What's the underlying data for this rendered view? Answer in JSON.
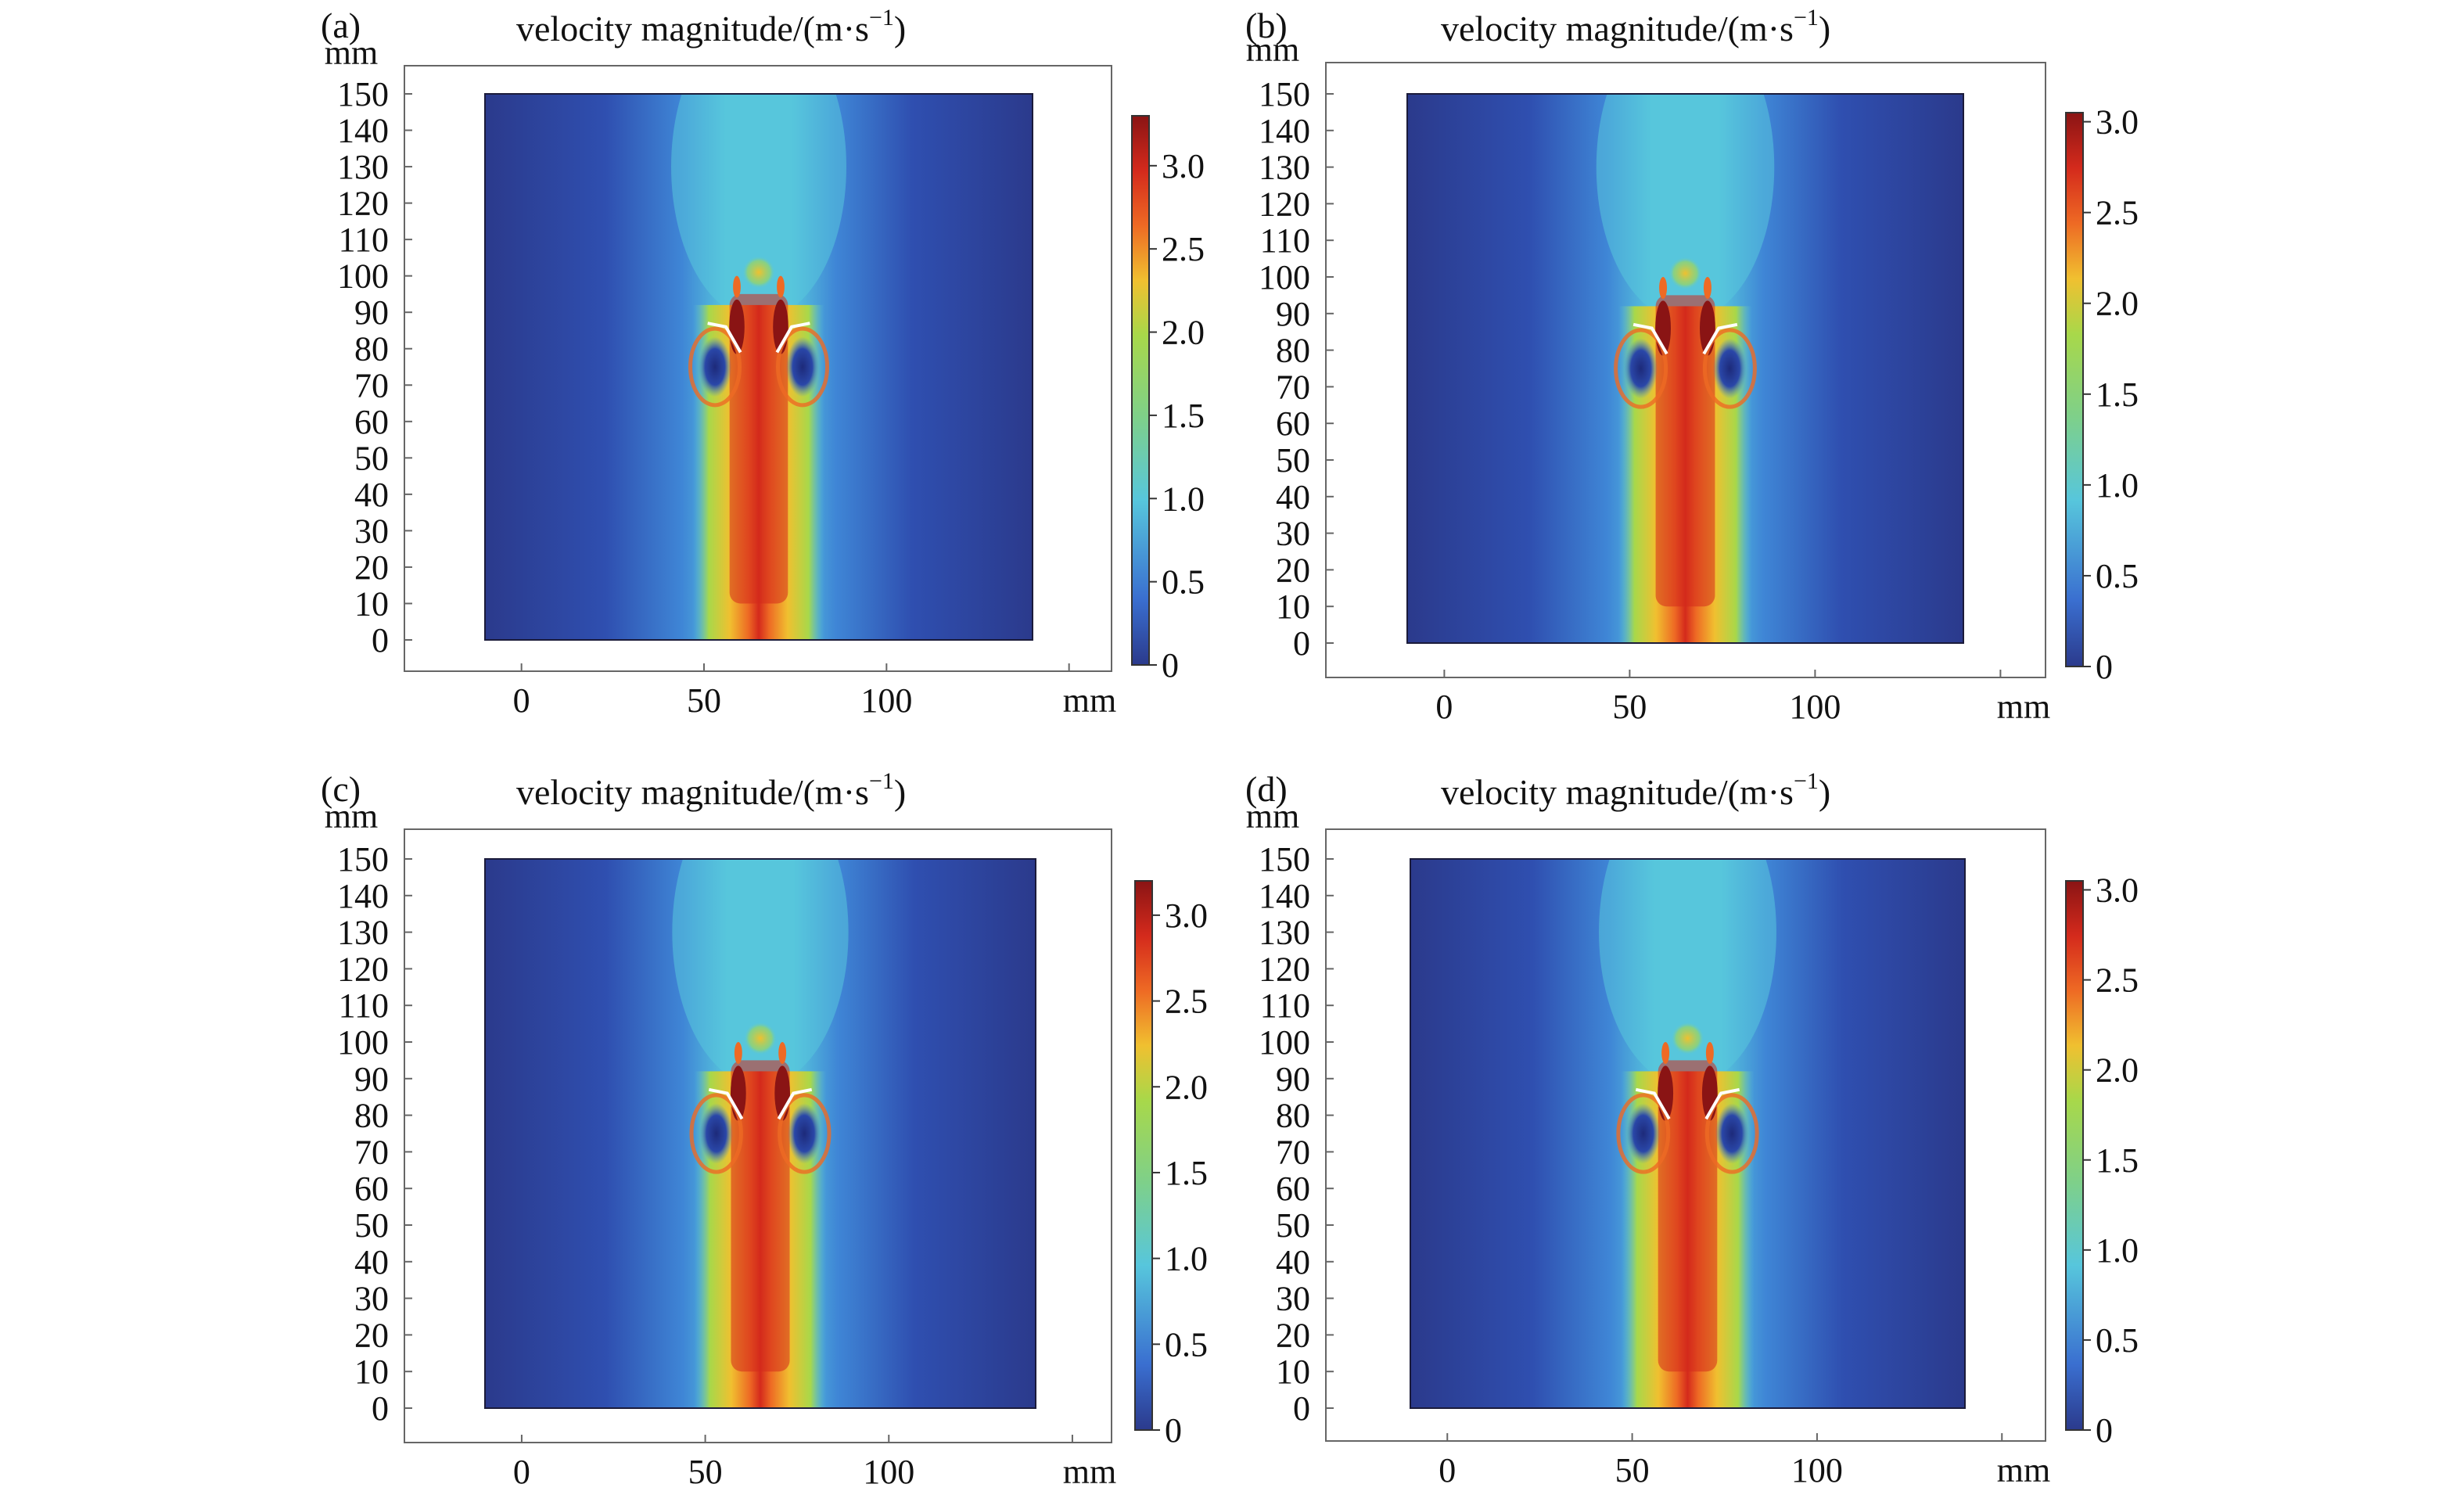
{
  "figure": {
    "panels": [
      {
        "label": "(a)",
        "title_main": "velocity magnitude/(m·s",
        "title_sup": "−1",
        "title_close": ")",
        "cbar_ticks": [
          "3.0",
          "2.5",
          "2.0",
          "1.5",
          "1.0",
          "0.5",
          "0"
        ],
        "cbar_max": 3.3
      },
      {
        "label": "(b)",
        "title_main": "velocity magnitude/(m·s",
        "title_sup": "−1",
        "title_close": ")",
        "cbar_ticks": [
          "3.0",
          "2.5",
          "2.0",
          "1.5",
          "1.0",
          "0.5",
          "0"
        ],
        "cbar_max": 3.05
      },
      {
        "label": "(c)",
        "title_main": "velocity magnitude/(m·s",
        "title_sup": "−1",
        "title_close": ")",
        "cbar_ticks": [
          "3.0",
          "2.5",
          "2.0",
          "1.5",
          "1.0",
          "0.5",
          "0"
        ],
        "cbar_max": 3.2
      },
      {
        "label": "(d)",
        "title_main": "velocity magnitude/(m·s",
        "title_sup": "−1",
        "title_close": ")",
        "cbar_ticks": [
          "3.0",
          "2.5",
          "2.0",
          "1.5",
          "1.0",
          "0.5",
          "0"
        ],
        "cbar_max": 3.05
      }
    ],
    "x_unit": "mm",
    "y_unit": "mm",
    "x_ticks": [
      "0",
      "50",
      "100"
    ],
    "y_ticks": [
      "150",
      "140",
      "130",
      "120",
      "110",
      "100",
      "90",
      "80",
      "70",
      "60",
      "50",
      "40",
      "30",
      "20",
      "10",
      "0"
    ],
    "colors": {
      "low": "#2b3a8c",
      "mid_low": "#3a6fd0",
      "cyan": "#57c6dc",
      "green": "#a8d84a",
      "yellow": "#f0c030",
      "orange": "#ee6a24",
      "red": "#d42a1c",
      "dark_red": "#8a1414"
    }
  },
  "chart_data": [
    {
      "type": "heatmap",
      "title": "velocity magnitude/(m·s−1)",
      "panel": "(a)",
      "xlabel": "mm",
      "ylabel": "mm",
      "x_ticks": [
        0,
        50,
        100
      ],
      "y_ticks": [
        0,
        10,
        20,
        30,
        40,
        50,
        60,
        70,
        80,
        90,
        100,
        110,
        120,
        130,
        140,
        150
      ],
      "colorbar_ticks": [
        0,
        0.5,
        1.0,
        1.5,
        2.0,
        2.5,
        3.0
      ],
      "colorbar_range": [
        0,
        3.3
      ]
    },
    {
      "type": "heatmap",
      "title": "velocity magnitude/(m·s−1)",
      "panel": "(b)",
      "xlabel": "mm",
      "ylabel": "mm",
      "x_ticks": [
        0,
        50,
        100
      ],
      "y_ticks": [
        0,
        10,
        20,
        30,
        40,
        50,
        60,
        70,
        80,
        90,
        100,
        110,
        120,
        130,
        140,
        150
      ],
      "colorbar_ticks": [
        0,
        0.5,
        1.0,
        1.5,
        2.0,
        2.5,
        3.0
      ],
      "colorbar_range": [
        0,
        3.05
      ]
    },
    {
      "type": "heatmap",
      "title": "velocity magnitude/(m·s−1)",
      "panel": "(c)",
      "xlabel": "mm",
      "ylabel": "mm",
      "x_ticks": [
        0,
        50,
        100
      ],
      "y_ticks": [
        0,
        10,
        20,
        30,
        40,
        50,
        60,
        70,
        80,
        90,
        100,
        110,
        120,
        130,
        140,
        150
      ],
      "colorbar_ticks": [
        0,
        0.5,
        1.0,
        1.5,
        2.0,
        2.5,
        3.0
      ],
      "colorbar_range": [
        0,
        3.2
      ]
    },
    {
      "type": "heatmap",
      "title": "velocity magnitude/(m·s−1)",
      "panel": "(d)",
      "xlabel": "mm",
      "ylabel": "mm",
      "x_ticks": [
        0,
        50,
        100
      ],
      "y_ticks": [
        0,
        10,
        20,
        30,
        40,
        50,
        60,
        70,
        80,
        90,
        100,
        110,
        120,
        130,
        140,
        150
      ],
      "colorbar_ticks": [
        0,
        0.5,
        1.0,
        1.5,
        2.0,
        2.5,
        3.0
      ],
      "colorbar_range": [
        0,
        3.05
      ]
    }
  ]
}
